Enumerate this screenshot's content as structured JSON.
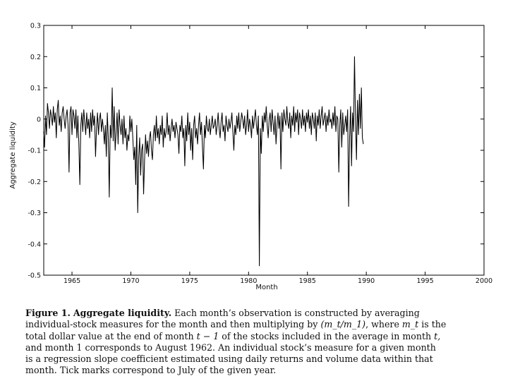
{
  "chart_data": {
    "type": "line",
    "title": "",
    "xlabel": "Month",
    "ylabel": "Aggregate liquidity",
    "xlim": [
      1962.6,
      2000
    ],
    "ylim": [
      -0.5,
      0.3
    ],
    "x_ticks": [
      1965,
      1970,
      1975,
      1980,
      1985,
      1990,
      1995,
      2000
    ],
    "y_ticks": [
      0.3,
      0.2,
      0.1,
      0,
      -0.1,
      -0.2,
      -0.3,
      -0.4,
      -0.5
    ],
    "x_tick_labels": [
      "1965",
      "1970",
      "1975",
      "1980",
      "1985",
      "1990",
      "1995",
      "2000"
    ],
    "y_tick_labels": [
      "0.3",
      "0.2",
      "0.1",
      "0",
      "-0.1",
      "-0.2",
      "-0.3",
      "-0.4",
      "-0.5"
    ],
    "grid": false,
    "series": [
      {
        "x_start": 1962.583,
        "x_step": 0.08333,
        "values": [
          -0.04,
          -0.09,
          0.01,
          -0.05,
          0.05,
          0.02,
          -0.03,
          0.03,
          0.01,
          -0.02,
          0.04,
          -0.01,
          0.02,
          -0.06,
          0.03,
          0.06,
          -0.02,
          0.01,
          -0.04,
          0.02,
          0.04,
          0.0,
          -0.03,
          0.01,
          0.03,
          -0.02,
          -0.17,
          0.02,
          0.04,
          -0.05,
          0.03,
          0.01,
          -0.03,
          0.03,
          -0.06,
          0.01,
          -0.08,
          -0.21,
          -0.02,
          0.02,
          -0.04,
          0.03,
          -0.01,
          -0.05,
          0.02,
          -0.03,
          0.0,
          -0.06,
          0.02,
          -0.04,
          0.03,
          -0.02,
          0.01,
          -0.12,
          -0.03,
          0.02,
          -0.05,
          0.0,
          0.02,
          -0.04,
          0.0,
          -0.03,
          -0.08,
          -0.02,
          -0.12,
          0.02,
          -0.06,
          -0.25,
          -0.02,
          -0.06,
          0.1,
          -0.07,
          0.04,
          -0.1,
          -0.04,
          0.02,
          -0.08,
          0.03,
          -0.02,
          -0.05,
          0.0,
          -0.08,
          0.01,
          -0.06,
          -0.03,
          -0.1,
          -0.05,
          -0.07,
          0.01,
          -0.04,
          0.0,
          -0.06,
          -0.13,
          -0.09,
          -0.21,
          -0.02,
          -0.3,
          -0.12,
          -0.06,
          -0.18,
          -0.1,
          -0.08,
          -0.24,
          -0.13,
          -0.05,
          -0.11,
          -0.07,
          -0.12,
          -0.06,
          -0.04,
          -0.1,
          -0.13,
          -0.05,
          -0.02,
          -0.07,
          0.01,
          -0.06,
          -0.03,
          -0.08,
          -0.02,
          -0.05,
          0.01,
          -0.09,
          -0.03,
          -0.06,
          -0.04,
          0.02,
          -0.05,
          -0.02,
          -0.07,
          -0.03,
          0.0,
          -0.04,
          -0.02,
          -0.06,
          -0.01,
          -0.03,
          -0.05,
          -0.11,
          -0.02,
          -0.04,
          0.01,
          -0.06,
          -0.03,
          -0.15,
          -0.02,
          -0.07,
          0.02,
          -0.05,
          -0.01,
          -0.1,
          -0.03,
          -0.13,
          -0.02,
          0.01,
          -0.06,
          -0.03,
          -0.08,
          -0.02,
          0.02,
          -0.05,
          -0.01,
          -0.09,
          -0.16,
          -0.02,
          -0.06,
          0.01,
          -0.03,
          -0.04,
          0.0,
          -0.05,
          -0.02,
          0.01,
          -0.03,
          -0.02,
          0.0,
          -0.05,
          -0.02,
          0.02,
          -0.03,
          -0.06,
          -0.01,
          0.02,
          -0.04,
          -0.02,
          -0.07,
          0.01,
          -0.02,
          -0.04,
          0.0,
          -0.03,
          -0.01,
          0.02,
          -0.04,
          -0.1,
          -0.02,
          -0.05,
          0.01,
          -0.03,
          0.02,
          -0.04,
          -0.01,
          0.02,
          0.0,
          -0.03,
          0.01,
          -0.05,
          -0.02,
          0.03,
          -0.04,
          0.0,
          -0.02,
          -0.06,
          0.01,
          -0.03,
          0.0,
          0.03,
          -0.02,
          -0.05,
          0.01,
          -0.47,
          -0.03,
          -0.11,
          0.01,
          -0.04,
          0.02,
          -0.01,
          0.04,
          -0.02,
          -0.06,
          0.0,
          0.02,
          -0.04,
          0.03,
          -0.01,
          -0.05,
          0.01,
          -0.08,
          -0.02,
          0.02,
          -0.03,
          0.01,
          -0.16,
          0.02,
          -0.04,
          0.03,
          0.0,
          -0.02,
          0.04,
          -0.01,
          -0.03,
          0.02,
          -0.06,
          0.01,
          -0.02,
          0.04,
          -0.04,
          0.02,
          -0.01,
          0.03,
          -0.05,
          0.02,
          0.0,
          -0.03,
          0.03,
          -0.02,
          0.01,
          -0.04,
          0.02,
          -0.01,
          0.03,
          -0.03,
          0.01,
          -0.05,
          0.02,
          0.0,
          -0.03,
          0.02,
          -0.07,
          0.01,
          -0.02,
          0.03,
          -0.03,
          0.01,
          0.04,
          -0.02,
          0.0,
          0.02,
          -0.04,
          0.01,
          -0.02,
          0.03,
          -0.01,
          0.0,
          -0.03,
          0.02,
          -0.02,
          0.04,
          -0.04,
          0.01,
          0.0,
          -0.17,
          -0.02,
          0.03,
          -0.09,
          0.02,
          -0.05,
          -0.02,
          0.01,
          -0.04,
          0.03,
          -0.28,
          -0.06,
          0.04,
          -0.15,
          0.02,
          -0.04,
          0.2,
          0.0,
          -0.13,
          0.06,
          -0.05,
          0.08,
          -0.03,
          0.1,
          -0.06,
          -0.08
        ]
      }
    ]
  },
  "caption": {
    "label": "Figure 1.",
    "heading": "Aggregate liquidity.",
    "line1_text": "Each month’s observation is constructed by averaging",
    "line2_text": "individual-stock measures for the month and then multiplying by",
    "line2_math": "(m_t/m_1)",
    "line2_where": ", where",
    "line2_var": "m_t",
    "line2_end": "is the",
    "line3_text": "total dollar value at the end of month",
    "line3_math": "t − 1",
    "line3_mid": "of the stocks included in the average in month",
    "line3_var": "t,",
    "line4_text": "and month 1 corresponds to August 1962. An individual stock’s measure for a given month",
    "line5_text": "is a regression slope coefficient estimated using daily returns and volume data within that",
    "line6_text": "month. Tick marks correspond to July of the given year."
  }
}
